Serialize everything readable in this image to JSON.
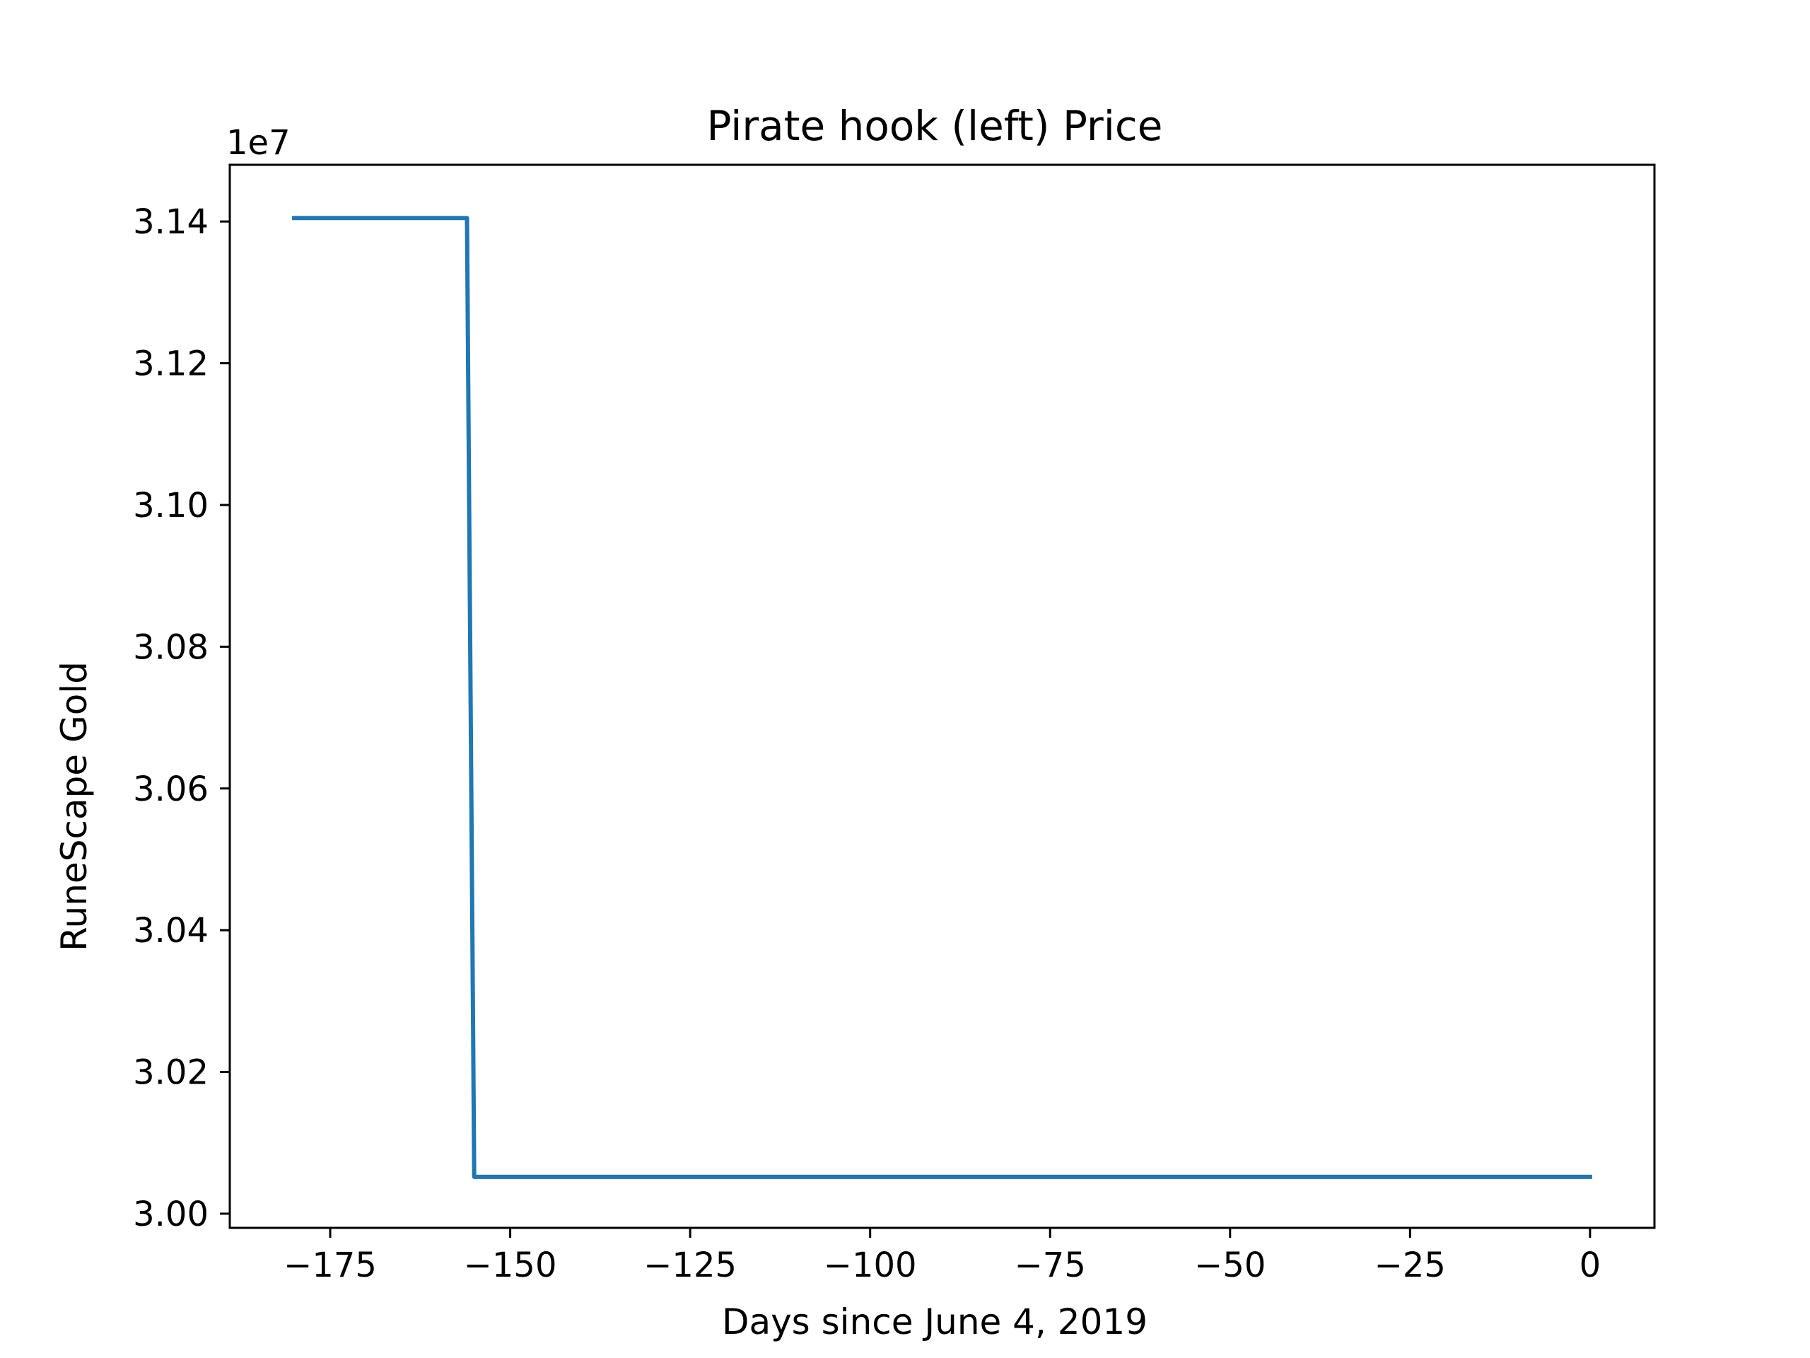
{
  "chart_data": {
    "type": "line",
    "title": "Pirate hook (left) Price",
    "xlabel": "Days since June 4, 2019",
    "ylabel": "RuneScape Gold",
    "y_offset_label": "1e7",
    "xlim": [
      -188.95,
      8.95
    ],
    "ylim": [
      29980000.0,
      31480000.0
    ],
    "x_ticks": [
      {
        "value": -175,
        "label": "−175"
      },
      {
        "value": -150,
        "label": "−150"
      },
      {
        "value": -125,
        "label": "−125"
      },
      {
        "value": -100,
        "label": "−100"
      },
      {
        "value": -75,
        "label": "−75"
      },
      {
        "value": -50,
        "label": "−50"
      },
      {
        "value": -25,
        "label": "−25"
      },
      {
        "value": 0,
        "label": "0"
      }
    ],
    "y_ticks": [
      {
        "value": 30000000,
        "label": "3.00"
      },
      {
        "value": 30200000,
        "label": "3.02"
      },
      {
        "value": 30400000,
        "label": "3.04"
      },
      {
        "value": 30600000,
        "label": "3.06"
      },
      {
        "value": 30800000,
        "label": "3.08"
      },
      {
        "value": 31000000,
        "label": "3.10"
      },
      {
        "value": 31200000,
        "label": "3.12"
      },
      {
        "value": 31400000,
        "label": "3.14"
      }
    ],
    "grid": false,
    "line_color": "#1f77b4",
    "series": [
      {
        "x": [
          -180,
          -156,
          -155,
          0
        ],
        "y": [
          31405000,
          31405000,
          30052000,
          30052000
        ]
      }
    ]
  }
}
